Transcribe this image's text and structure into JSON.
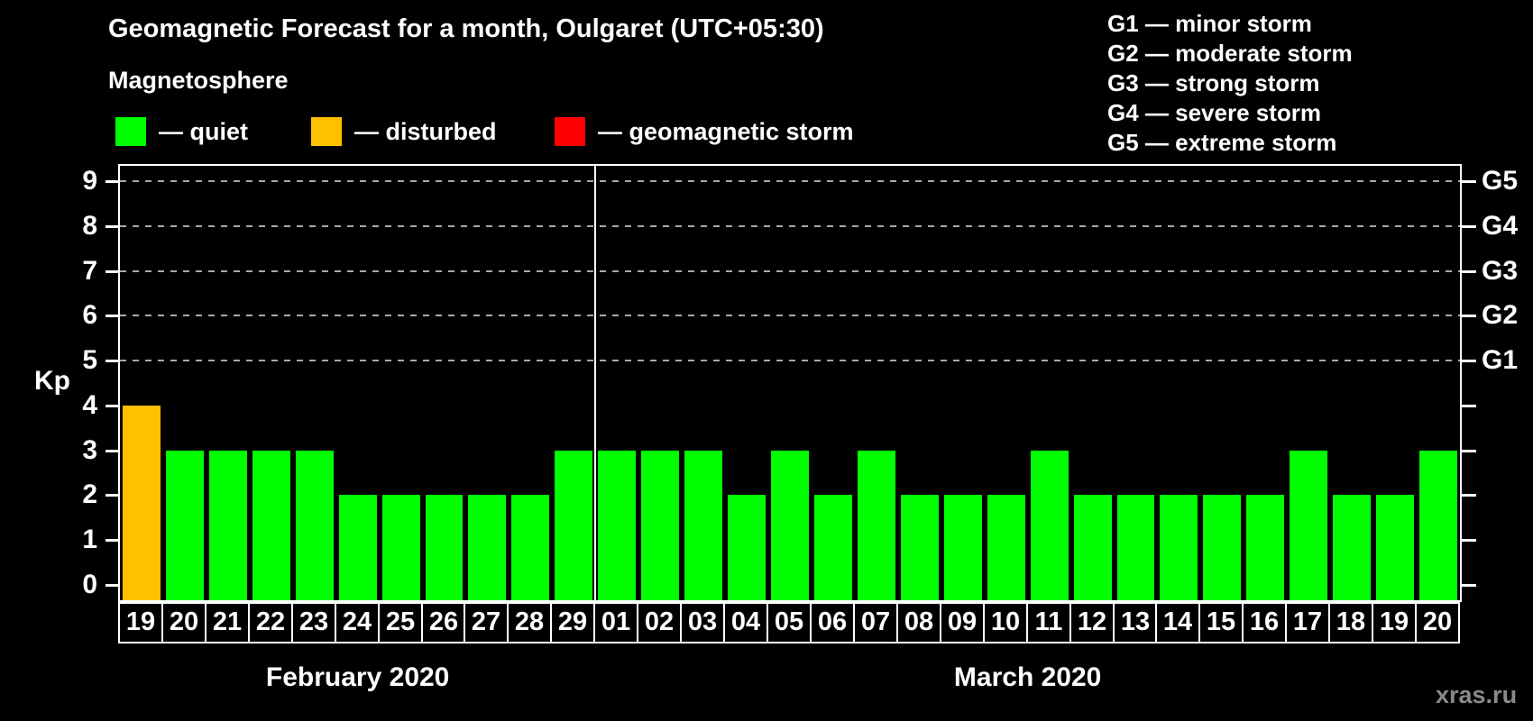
{
  "title": "Geomagnetic Forecast for a month, Oulgaret (UTC+05:30)",
  "legend": {
    "heading": "Magnetosphere",
    "items": [
      {
        "name": "quiet",
        "label": "— quiet",
        "color": "#00ff00"
      },
      {
        "name": "disturbed",
        "label": "— disturbed",
        "color": "#ffc000"
      },
      {
        "name": "geomagnetic-storm",
        "label": "— geomagnetic storm",
        "color": "#ff0000"
      }
    ]
  },
  "storm_scale_legend": [
    "G1 — minor storm",
    "G2 — moderate storm",
    "G3 — strong storm",
    "G4 — severe storm",
    "G5 — extreme storm"
  ],
  "watermark": "xras.ru",
  "chart_data": {
    "type": "bar",
    "title": "Geomagnetic Forecast for a month, Oulgaret (UTC+05:30)",
    "ylabel": "Kp",
    "ylim": [
      -0.35,
      9.35
    ],
    "left_ticks": [
      0,
      1,
      2,
      3,
      4,
      5,
      6,
      7,
      8,
      9
    ],
    "gridline_values": [
      5,
      6,
      7,
      8,
      9
    ],
    "right_axis_labels": [
      {
        "value": 5,
        "label": "G1"
      },
      {
        "value": 6,
        "label": "G2"
      },
      {
        "value": 7,
        "label": "G3"
      },
      {
        "value": 8,
        "label": "G4"
      },
      {
        "value": 9,
        "label": "G5"
      }
    ],
    "status_colors": {
      "quiet": "#00ff00",
      "disturbed": "#ffc000",
      "storm": "#ff0000"
    },
    "categories": [
      "19",
      "20",
      "21",
      "22",
      "23",
      "24",
      "25",
      "26",
      "27",
      "28",
      "29",
      "01",
      "02",
      "03",
      "04",
      "05",
      "06",
      "07",
      "08",
      "09",
      "10",
      "11",
      "12",
      "13",
      "14",
      "15",
      "16",
      "17",
      "18",
      "19",
      "20"
    ],
    "values": [
      4,
      3,
      3,
      3,
      3,
      2,
      2,
      2,
      2,
      2,
      3,
      3,
      3,
      3,
      2,
      3,
      2,
      3,
      2,
      2,
      2,
      3,
      2,
      2,
      2,
      2,
      2,
      3,
      2,
      2,
      3
    ],
    "statuses": [
      "disturbed",
      "quiet",
      "quiet",
      "quiet",
      "quiet",
      "quiet",
      "quiet",
      "quiet",
      "quiet",
      "quiet",
      "quiet",
      "quiet",
      "quiet",
      "quiet",
      "quiet",
      "quiet",
      "quiet",
      "quiet",
      "quiet",
      "quiet",
      "quiet",
      "quiet",
      "quiet",
      "quiet",
      "quiet",
      "quiet",
      "quiet",
      "quiet",
      "quiet",
      "quiet",
      "quiet"
    ],
    "month_groups": [
      {
        "label": "February 2020",
        "start": 0,
        "count": 11
      },
      {
        "label": "March 2020",
        "start": 11,
        "count": 20
      }
    ],
    "grid": "dashed horizontal gridlines at G-storm levels only",
    "legend_position": "top"
  }
}
